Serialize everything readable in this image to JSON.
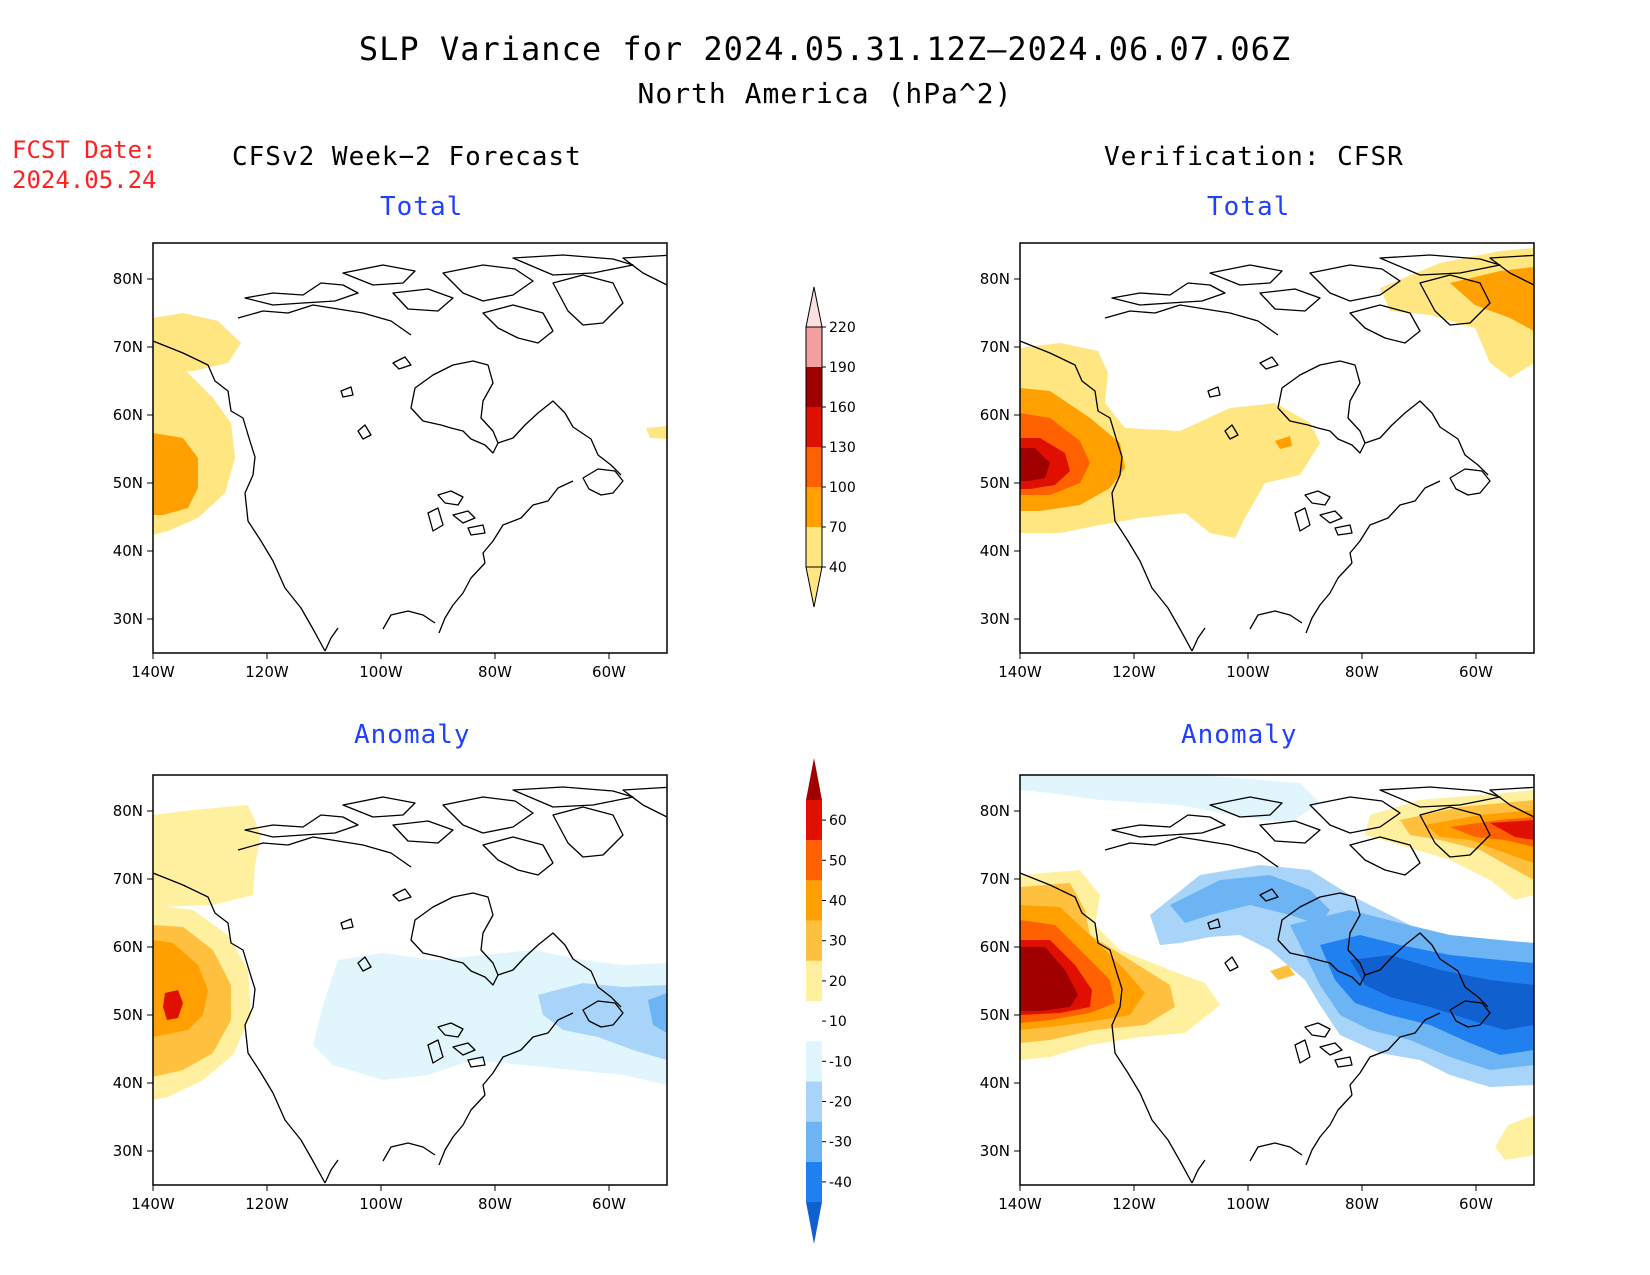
{
  "title": "SLP Variance for 2024.05.31.12Z–2024.06.07.06Z",
  "subtitle": "North America (hPa^2)",
  "fcst_label": "FCST Date:",
  "fcst_date": "2024.05.24",
  "columns": {
    "left": "CFSv2 Week−2 Forecast",
    "right": "Verification: CFSR"
  },
  "panels": {
    "fcst_total": "Total",
    "fcst_anomaly": "Anomaly",
    "verif_total": "Total",
    "verif_anomaly": "Anomaly"
  },
  "map": {
    "region": "North America",
    "lon_ticks": [
      "140W",
      "120W",
      "100W",
      "80W",
      "60W"
    ],
    "lat_ticks": [
      "80N",
      "70N",
      "60N",
      "50N",
      "40N",
      "30N"
    ]
  },
  "total_colorbar": {
    "levels": [
      "40",
      "70",
      "100",
      "130",
      "160",
      "190",
      "220"
    ],
    "colors": [
      "#ffe680",
      "#ffa000",
      "#ff6000",
      "#e01000",
      "#a00000",
      "#f4a0a0",
      "#fce0e0"
    ]
  },
  "anomaly_colorbar": {
    "levels": [
      "-40",
      "-30",
      "-20",
      "-10",
      "10",
      "20",
      "30",
      "40",
      "50",
      "60"
    ],
    "colors": [
      "#1060d0",
      "#2080f0",
      "#6cb4f4",
      "#a8d4fa",
      "#e0f6fc",
      "#ffffff",
      "#fff0a0",
      "#ffc040",
      "#ffa000",
      "#ff6000",
      "#e01000",
      "#a00000"
    ]
  },
  "colors": {
    "title_blue": "#2040ff",
    "fcst_red": "#ff2020"
  }
}
